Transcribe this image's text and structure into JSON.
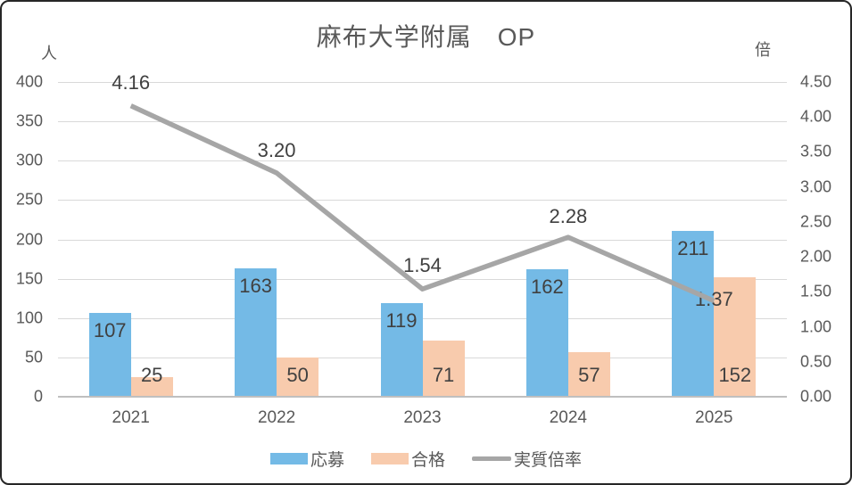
{
  "title": "麻布大学附属　OP",
  "chart_data": {
    "type": "bar+line",
    "categories": [
      "2021",
      "2022",
      "2023",
      "2024",
      "2025"
    ],
    "series": [
      {
        "name": "応募",
        "type": "bar",
        "axis": "left",
        "color": "#74BAE6",
        "values": [
          107,
          163,
          119,
          162,
          211
        ],
        "label_position": "inside-end"
      },
      {
        "name": "合格",
        "type": "bar",
        "axis": "left",
        "color": "#F8CBAD",
        "values": [
          25,
          50,
          71,
          57,
          152
        ],
        "label_position": "inside-base"
      },
      {
        "name": "実質倍率",
        "type": "line",
        "axis": "right",
        "color": "#A6A6A6",
        "values": [
          4.16,
          3.2,
          1.54,
          2.28,
          1.37
        ],
        "point_labels": [
          {
            "text": "4.16",
            "dy": -39
          },
          {
            "text": "3.20",
            "dy": -38
          },
          {
            "text": "1.54",
            "dy": -39
          },
          {
            "text": "2.28",
            "dy": -36
          },
          {
            "text": "1.37",
            "dy": -15
          }
        ]
      }
    ],
    "left_axis": {
      "unit": "人",
      "min": 0,
      "max": 400,
      "step": 50,
      "tick_labels": [
        "0",
        "50",
        "100",
        "150",
        "200",
        "250",
        "300",
        "350",
        "400"
      ]
    },
    "right_axis": {
      "unit": "倍",
      "min": 0,
      "max": 4.5,
      "step": 0.5,
      "tick_labels": [
        "0.00",
        "0.50",
        "1.00",
        "1.50",
        "2.00",
        "2.50",
        "3.00",
        "3.50",
        "4.00",
        "4.50"
      ]
    },
    "grid": "horizontal",
    "legend_position": "bottom"
  },
  "colors": {
    "grid": "#D9D9D9",
    "axis_line": "#BFBFBF",
    "tick_text": "#595959",
    "data_label_text": "#404040",
    "frame_border": "#262626"
  }
}
